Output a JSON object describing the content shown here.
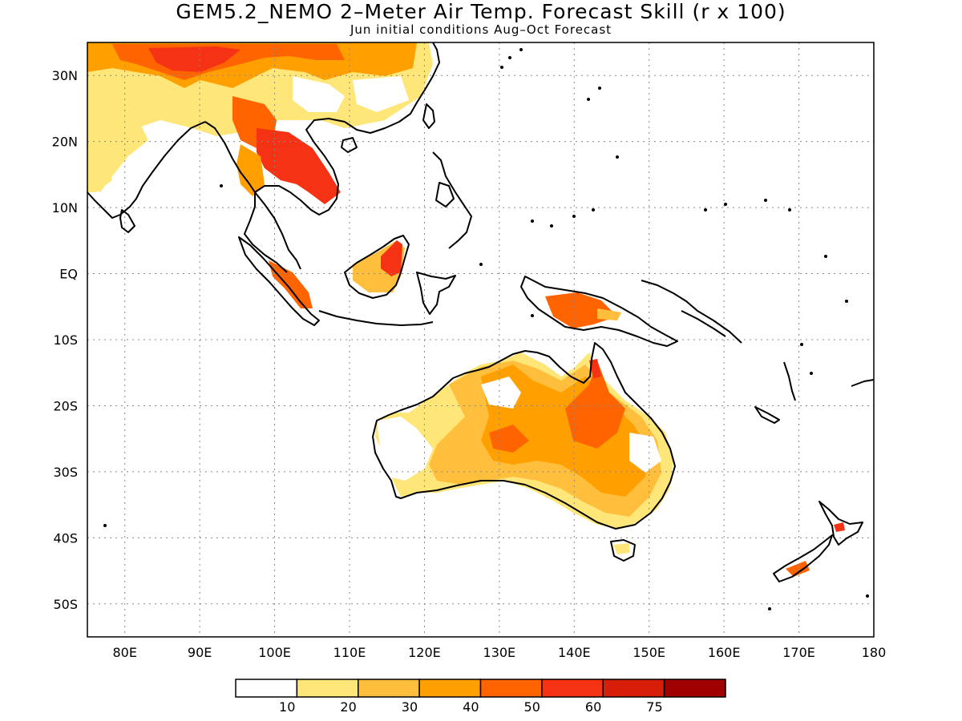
{
  "title": "GEM5.2_NEMO 2–Meter Air Temp. Forecast Skill (r x 100)",
  "subtitle": "Jun initial conditions  Aug–Oct Forecast",
  "map": {
    "lon_range": [
      75,
      180
    ],
    "lat_range": [
      -55,
      35
    ],
    "grid": true,
    "lat_ticks": [
      {
        "value": 30,
        "label": "30N"
      },
      {
        "value": 20,
        "label": "20N"
      },
      {
        "value": 10,
        "label": "10N"
      },
      {
        "value": 0,
        "label": "EQ"
      },
      {
        "value": -10,
        "label": "10S"
      },
      {
        "value": -20,
        "label": "20S"
      },
      {
        "value": -30,
        "label": "30S"
      },
      {
        "value": -40,
        "label": "40S"
      },
      {
        "value": -50,
        "label": "50S"
      }
    ],
    "lon_ticks": [
      {
        "value": 80,
        "label": "80E"
      },
      {
        "value": 90,
        "label": "90E"
      },
      {
        "value": 100,
        "label": "100E"
      },
      {
        "value": 110,
        "label": "110E"
      },
      {
        "value": 120,
        "label": "120E"
      },
      {
        "value": 130,
        "label": "130E"
      },
      {
        "value": 140,
        "label": "140E"
      },
      {
        "value": 150,
        "label": "150E"
      },
      {
        "value": 160,
        "label": "160E"
      },
      {
        "value": 170,
        "label": "170E"
      },
      {
        "value": 180,
        "label": "180"
      }
    ]
  },
  "colorbar": {
    "colors": [
      "#ffffff",
      "#ffe679",
      "#ffbe3c",
      "#ffa000",
      "#ff6400",
      "#f53214",
      "#d71e08",
      "#a00000"
    ],
    "labels": [
      "10",
      "20",
      "30",
      "40",
      "50",
      "60",
      "75"
    ]
  }
}
